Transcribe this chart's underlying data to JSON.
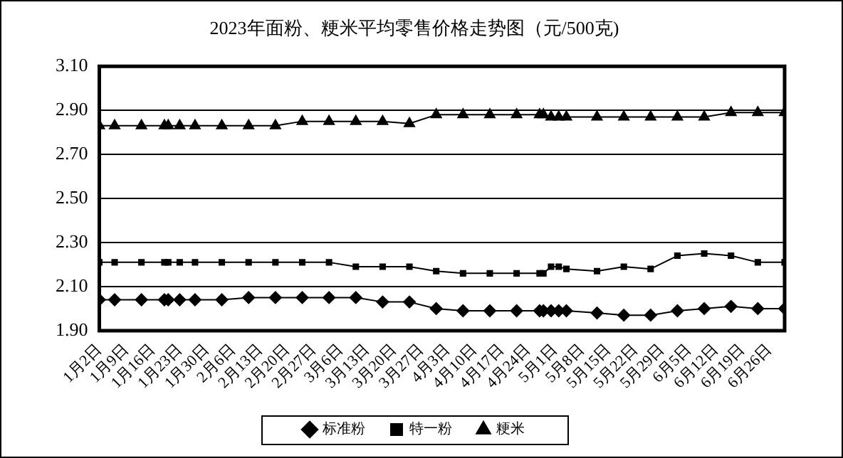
{
  "chart_data": {
    "type": "line",
    "title": "2023年面粉、粳米平均零售价格走势图（元/500克)",
    "x": [
      "2023-01-02",
      "2023-01-06",
      "2023-01-13",
      "2023-01-19",
      "2023-01-20",
      "2023-01-23",
      "2023-01-27",
      "2023-02-03",
      "2023-02-10",
      "2023-02-17",
      "2023-02-24",
      "2023-03-03",
      "2023-03-10",
      "2023-03-17",
      "2023-03-24",
      "2023-03-31",
      "2023-04-07",
      "2023-04-14",
      "2023-04-21",
      "2023-04-27",
      "2023-04-28",
      "2023-04-30",
      "2023-05-02",
      "2023-05-04",
      "2023-05-12",
      "2023-05-19",
      "2023-05-26",
      "2023-06-02",
      "2023-06-09",
      "2023-06-16",
      "2023-06-23",
      "2023-06-30"
    ],
    "series": [
      {
        "name": "标准粉",
        "color": "#000000",
        "marker": "diamond",
        "values": [
          2.04,
          2.04,
          2.04,
          2.04,
          2.04,
          2.04,
          2.04,
          2.04,
          2.05,
          2.05,
          2.05,
          2.05,
          2.05,
          2.03,
          2.03,
          2.0,
          1.99,
          1.99,
          1.99,
          1.99,
          1.99,
          1.99,
          1.99,
          1.99,
          1.98,
          1.97,
          1.97,
          1.99,
          2.0,
          2.01,
          2.0,
          2.0
        ]
      },
      {
        "name": "特一粉",
        "color": "#000000",
        "marker": "square",
        "values": [
          2.21,
          2.21,
          2.21,
          2.21,
          2.21,
          2.21,
          2.21,
          2.21,
          2.21,
          2.21,
          2.21,
          2.21,
          2.19,
          2.19,
          2.19,
          2.17,
          2.16,
          2.16,
          2.16,
          2.16,
          2.16,
          2.19,
          2.19,
          2.18,
          2.17,
          2.19,
          2.18,
          2.24,
          2.25,
          2.24,
          2.21,
          2.21
        ]
      },
      {
        "name": "粳米",
        "color": "#000000",
        "marker": "triangle",
        "values": [
          2.83,
          2.83,
          2.83,
          2.83,
          2.83,
          2.83,
          2.83,
          2.83,
          2.83,
          2.83,
          2.85,
          2.85,
          2.85,
          2.85,
          2.84,
          2.88,
          2.88,
          2.88,
          2.88,
          2.88,
          2.88,
          2.87,
          2.87,
          2.87,
          2.87,
          2.87,
          2.87,
          2.87,
          2.87,
          2.89,
          2.89,
          2.89
        ]
      }
    ],
    "xlim": [
      "2023-01-02",
      "2023-06-30"
    ],
    "xticks": [
      {
        "value": "2023-01-02",
        "label": "1月2日"
      },
      {
        "value": "2023-01-09",
        "label": "1月9日"
      },
      {
        "value": "2023-01-16",
        "label": "1月16日"
      },
      {
        "value": "2023-01-23",
        "label": "1月23日"
      },
      {
        "value": "2023-01-30",
        "label": "1月30日"
      },
      {
        "value": "2023-02-06",
        "label": "2月6日"
      },
      {
        "value": "2023-02-13",
        "label": "2月13日"
      },
      {
        "value": "2023-02-20",
        "label": "2月20日"
      },
      {
        "value": "2023-02-27",
        "label": "2月27日"
      },
      {
        "value": "2023-03-06",
        "label": "3月6日"
      },
      {
        "value": "2023-03-13",
        "label": "3月13日"
      },
      {
        "value": "2023-03-20",
        "label": "3月20日"
      },
      {
        "value": "2023-03-27",
        "label": "3月27日"
      },
      {
        "value": "2023-04-03",
        "label": "4月3日"
      },
      {
        "value": "2023-04-10",
        "label": "4月10日"
      },
      {
        "value": "2023-04-17",
        "label": "4月17日"
      },
      {
        "value": "2023-04-24",
        "label": "4月24日"
      },
      {
        "value": "2023-05-01",
        "label": "5月1日"
      },
      {
        "value": "2023-05-08",
        "label": "5月8日"
      },
      {
        "value": "2023-05-15",
        "label": "5月15日"
      },
      {
        "value": "2023-05-22",
        "label": "5月22日"
      },
      {
        "value": "2023-05-29",
        "label": "5月29日"
      },
      {
        "value": "2023-06-05",
        "label": "6月5日"
      },
      {
        "value": "2023-06-12",
        "label": "6月12日"
      },
      {
        "value": "2023-06-19",
        "label": "6月19日"
      },
      {
        "value": "2023-06-26",
        "label": "6月26日"
      }
    ],
    "ylim": [
      1.9,
      3.1
    ],
    "yticks": [
      {
        "value": 1.9,
        "label": "1.90"
      },
      {
        "value": 2.1,
        "label": "2.10"
      },
      {
        "value": 2.3,
        "label": "2.30"
      },
      {
        "value": 2.5,
        "label": "2.50"
      },
      {
        "value": 2.7,
        "label": "2.70"
      },
      {
        "value": 2.9,
        "label": "2.90"
      },
      {
        "value": 3.1,
        "label": "3.10"
      }
    ],
    "grid": "y",
    "legend": "bottom"
  }
}
